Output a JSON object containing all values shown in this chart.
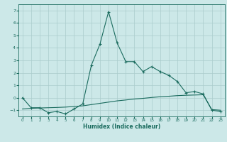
{
  "xlabel": "Humidex (Indice chaleur)",
  "ylabel": "",
  "background_color": "#cce8e8",
  "grid_color": "#aacccc",
  "line_color": "#1a6b5e",
  "x_line1": [
    0,
    1,
    2,
    3,
    4,
    5,
    6,
    7,
    8,
    9,
    10,
    11,
    12,
    13,
    14,
    15,
    16,
    17,
    18,
    19,
    20,
    21,
    22,
    23
  ],
  "y_line1": [
    0.0,
    -0.8,
    -0.8,
    -1.2,
    -1.1,
    -1.3,
    -0.9,
    -0.5,
    2.6,
    4.3,
    6.9,
    4.4,
    2.9,
    2.9,
    2.1,
    2.5,
    2.1,
    1.8,
    1.3,
    0.4,
    0.5,
    0.3,
    -1.0,
    -1.1
  ],
  "x_line2": [
    0,
    1,
    2,
    3,
    4,
    5,
    6,
    7,
    8,
    9,
    10,
    11,
    12,
    13,
    14,
    15,
    16,
    17,
    18,
    19,
    20,
    21,
    22,
    23
  ],
  "y_line2": [
    -0.9,
    -0.85,
    -0.82,
    -0.8,
    -0.78,
    -0.75,
    -0.7,
    -0.65,
    -0.55,
    -0.45,
    -0.35,
    -0.25,
    -0.18,
    -0.1,
    -0.05,
    0.02,
    0.08,
    0.12,
    0.17,
    0.2,
    0.22,
    0.24,
    -0.95,
    -1.0
  ],
  "ylim": [
    -1.5,
    7.5
  ],
  "xlim": [
    -0.5,
    23.5
  ],
  "yticks": [
    -1,
    0,
    1,
    2,
    3,
    4,
    5,
    6,
    7
  ],
  "xticks": [
    0,
    1,
    2,
    3,
    4,
    5,
    6,
    7,
    8,
    9,
    10,
    11,
    12,
    13,
    14,
    15,
    16,
    17,
    18,
    19,
    20,
    21,
    22,
    23
  ]
}
